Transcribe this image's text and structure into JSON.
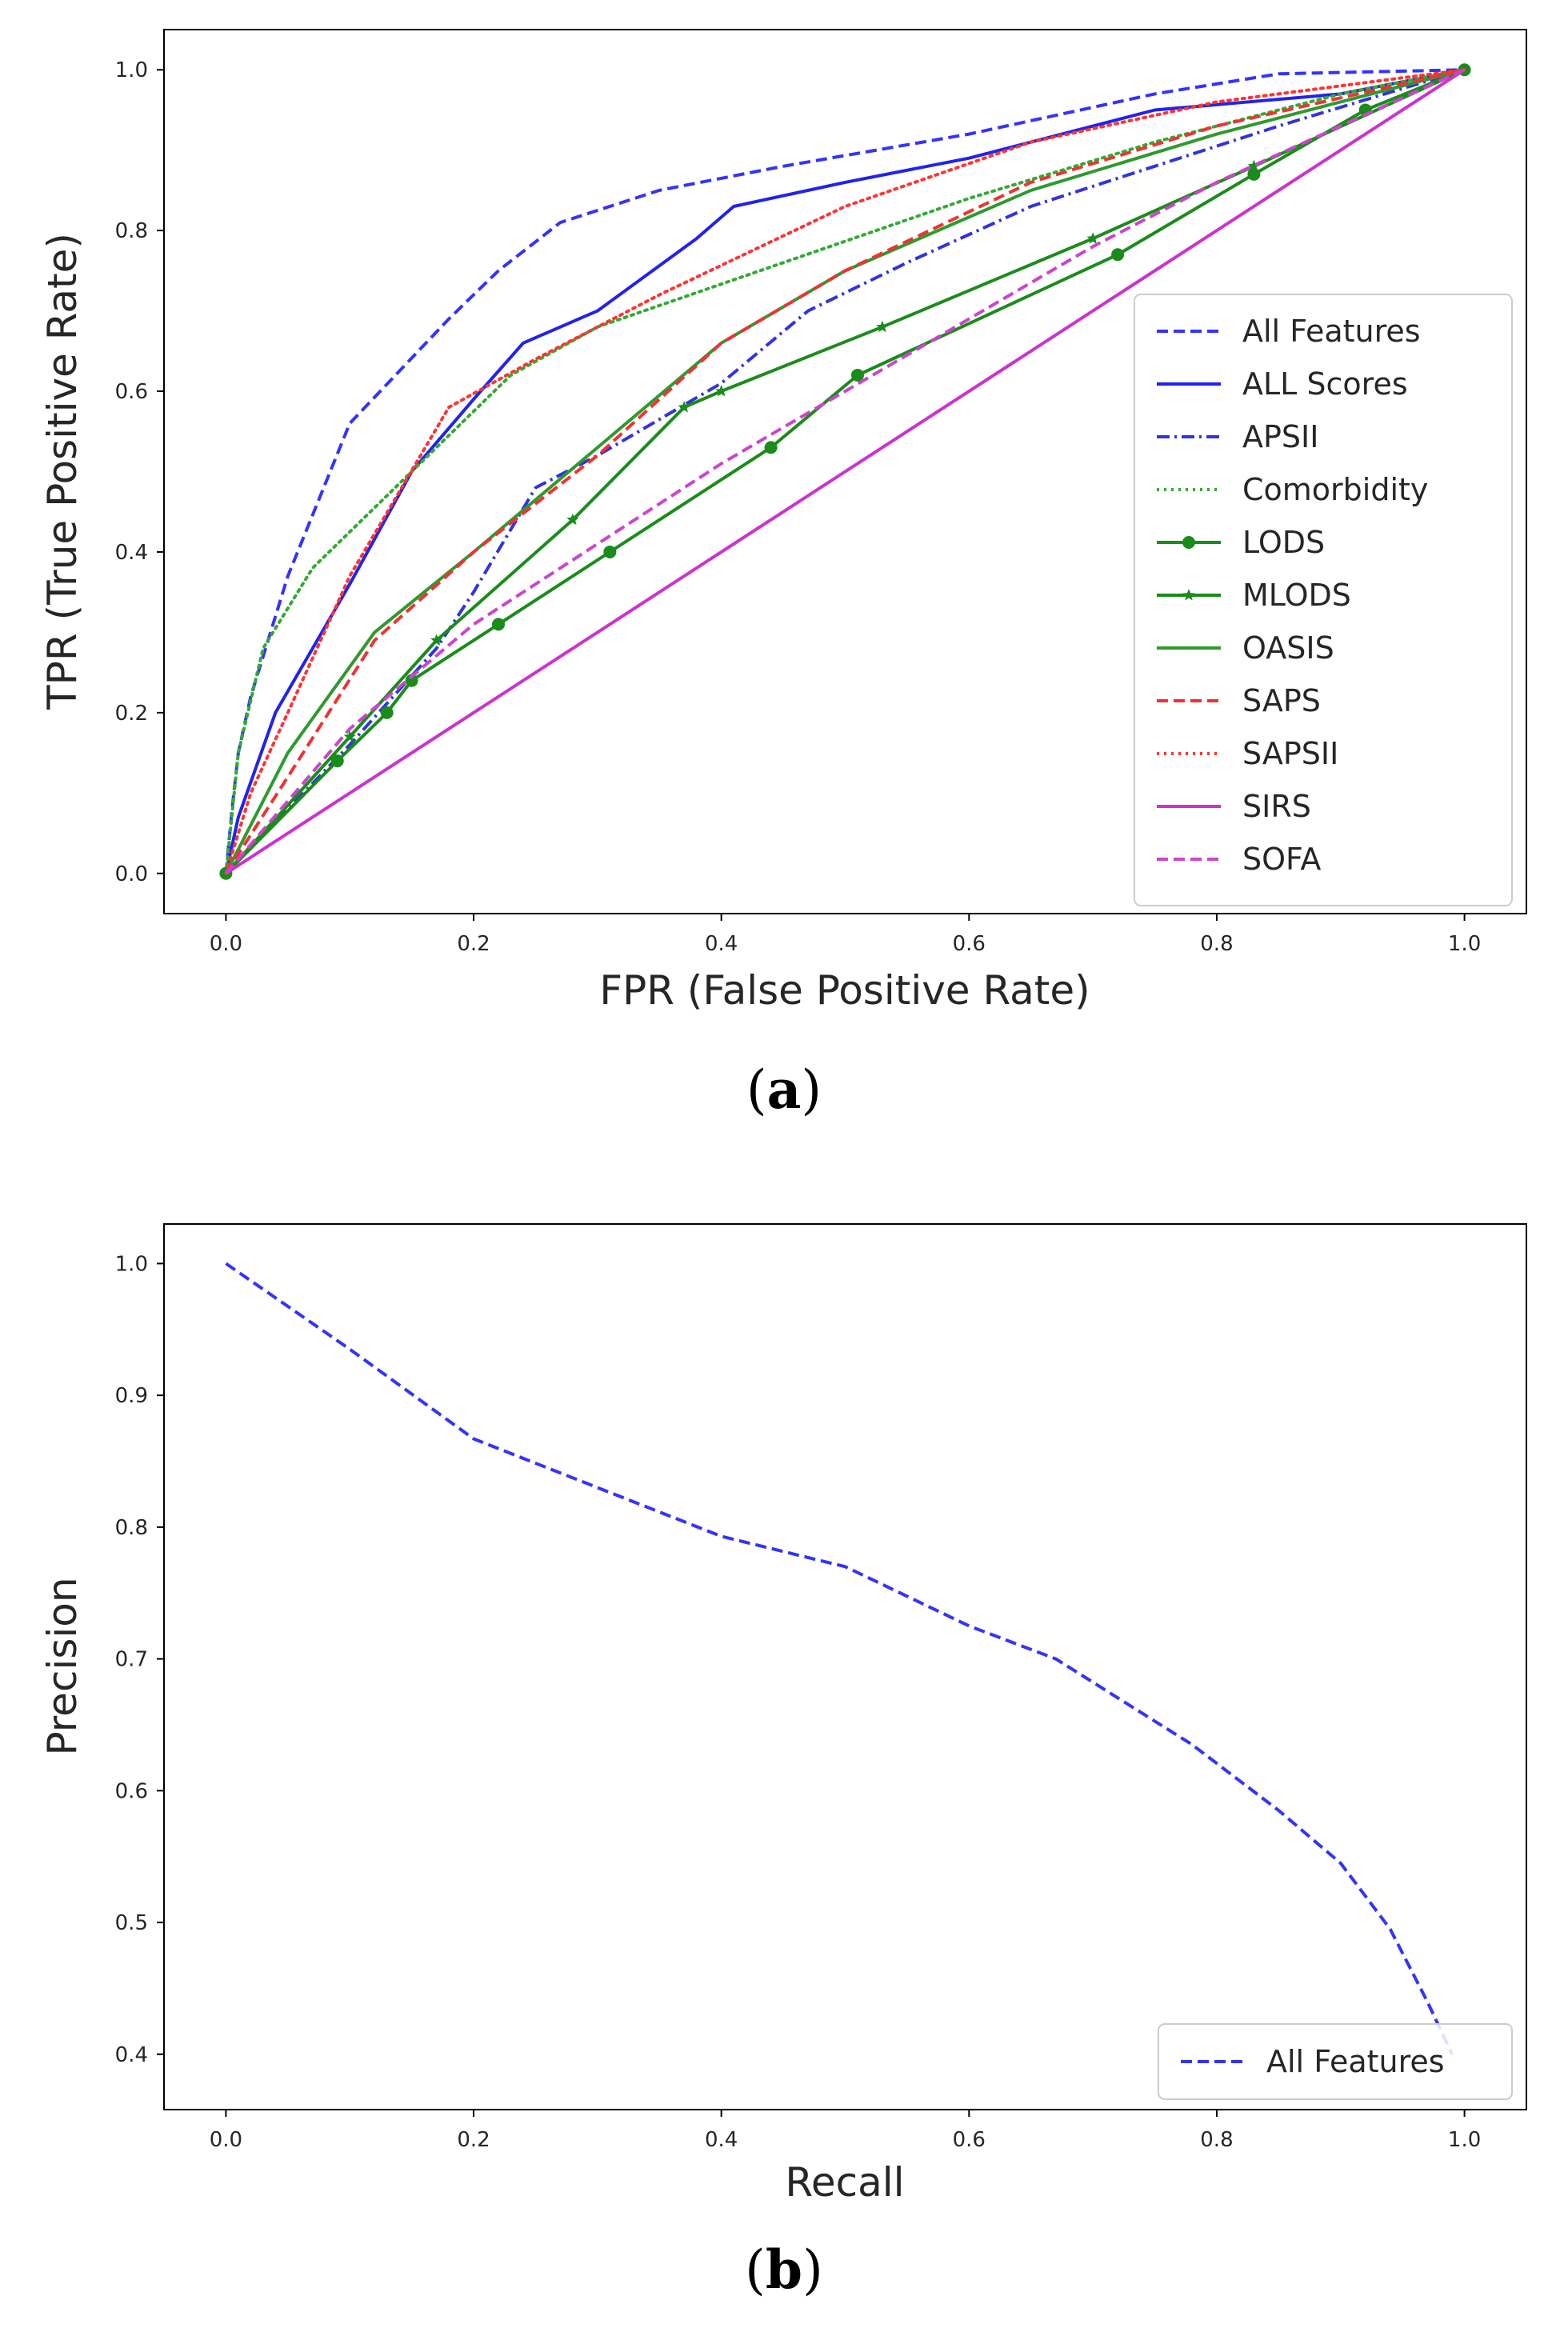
{
  "chart_data": [
    {
      "type": "line",
      "panel_label": "a",
      "xlabel": "FPR (False Positive Rate)",
      "ylabel": "TPR (True Positive Rate)",
      "xlim": [
        -0.05,
        1.05
      ],
      "ylim": [
        -0.05,
        1.05
      ],
      "xticks": [
        "0.0",
        "0.2",
        "0.4",
        "0.6",
        "0.8",
        "1.0"
      ],
      "yticks": [
        "0.0",
        "0.2",
        "0.4",
        "0.6",
        "0.8",
        "1.0"
      ],
      "legend_position": "lower-right",
      "series": [
        {
          "name": "All Features",
          "color": "#3333ff",
          "style": "dashed",
          "marker": "none",
          "x": [
            0,
            0.005,
            0.01,
            0.02,
            0.05,
            0.1,
            0.18,
            0.22,
            0.27,
            0.35,
            0.45,
            0.6,
            0.75,
            0.85,
            1.0
          ],
          "y": [
            0,
            0.08,
            0.15,
            0.22,
            0.37,
            0.56,
            0.69,
            0.75,
            0.81,
            0.85,
            0.88,
            0.92,
            0.97,
            0.995,
            1.0
          ]
        },
        {
          "name": "ALL Scores",
          "color": "#2222ee",
          "style": "solid",
          "marker": "none",
          "x": [
            0,
            0.01,
            0.04,
            0.1,
            0.15,
            0.2,
            0.24,
            0.3,
            0.38,
            0.41,
            0.5,
            0.6,
            0.75,
            0.9,
            1.0
          ],
          "y": [
            0,
            0.07,
            0.2,
            0.36,
            0.5,
            0.59,
            0.66,
            0.7,
            0.79,
            0.83,
            0.86,
            0.89,
            0.95,
            0.97,
            1.0
          ]
        },
        {
          "name": "APSII",
          "color": "#3333dd",
          "style": "dashdot",
          "marker": "none",
          "x": [
            0,
            0.05,
            0.1,
            0.17,
            0.2,
            0.25,
            0.3,
            0.4,
            0.47,
            0.55,
            0.65,
            0.75,
            0.85,
            1.0
          ],
          "y": [
            0,
            0.08,
            0.16,
            0.28,
            0.35,
            0.48,
            0.52,
            0.61,
            0.7,
            0.76,
            0.83,
            0.88,
            0.93,
            1.0
          ]
        },
        {
          "name": "Comorbidity",
          "color": "#33aa33",
          "style": "dotted",
          "marker": "none",
          "x": [
            0,
            0.01,
            0.03,
            0.07,
            0.15,
            0.23,
            0.3,
            0.45,
            0.6,
            0.75,
            0.9,
            1.0
          ],
          "y": [
            0,
            0.15,
            0.28,
            0.38,
            0.5,
            0.62,
            0.68,
            0.76,
            0.84,
            0.91,
            0.97,
            1.0
          ]
        },
        {
          "name": "LODS",
          "color": "#1a8c1a",
          "style": "solid",
          "marker": "circle",
          "x": [
            0,
            0.09,
            0.13,
            0.15,
            0.22,
            0.31,
            0.44,
            0.51,
            0.72,
            0.83,
            0.92,
            1.0
          ],
          "y": [
            0,
            0.14,
            0.2,
            0.24,
            0.31,
            0.4,
            0.53,
            0.62,
            0.77,
            0.87,
            0.95,
            1.0
          ]
        },
        {
          "name": "MLODS",
          "color": "#1a8c1a",
          "style": "solid",
          "marker": "star",
          "x": [
            0,
            0.1,
            0.17,
            0.28,
            0.37,
            0.4,
            0.53,
            0.7,
            0.83,
            1.0
          ],
          "y": [
            0,
            0.17,
            0.29,
            0.44,
            0.58,
            0.6,
            0.68,
            0.79,
            0.88,
            1.0
          ]
        },
        {
          "name": "OASIS",
          "color": "#2e9a2e",
          "style": "solid",
          "marker": "none",
          "x": [
            0,
            0.05,
            0.12,
            0.2,
            0.3,
            0.4,
            0.5,
            0.65,
            0.8,
            1.0
          ],
          "y": [
            0,
            0.15,
            0.3,
            0.4,
            0.53,
            0.66,
            0.75,
            0.85,
            0.92,
            1.0
          ]
        },
        {
          "name": "SAPS",
          "color": "#ee3333",
          "style": "dashed",
          "marker": "none",
          "x": [
            0,
            0.05,
            0.12,
            0.2,
            0.3,
            0.4,
            0.5,
            0.65,
            0.8,
            1.0
          ],
          "y": [
            0,
            0.12,
            0.29,
            0.4,
            0.52,
            0.66,
            0.75,
            0.86,
            0.93,
            1.0
          ]
        },
        {
          "name": "SAPSII",
          "color": "#ff3333",
          "style": "dotted",
          "marker": "none",
          "x": [
            0,
            0.02,
            0.05,
            0.1,
            0.18,
            0.25,
            0.35,
            0.5,
            0.65,
            0.8,
            1.0
          ],
          "y": [
            0,
            0.1,
            0.2,
            0.37,
            0.58,
            0.64,
            0.72,
            0.83,
            0.91,
            0.96,
            1.0
          ]
        },
        {
          "name": "SIRS",
          "color": "#cc33cc",
          "style": "solid",
          "marker": "none",
          "x": [
            0,
            1.0
          ],
          "y": [
            0,
            1.0
          ]
        },
        {
          "name": "SOFA",
          "color": "#cc44cc",
          "style": "dashed",
          "marker": "none",
          "x": [
            0,
            0.1,
            0.2,
            0.3,
            0.4,
            0.5,
            0.6,
            0.7,
            0.8,
            0.9,
            1.0
          ],
          "y": [
            0,
            0.18,
            0.31,
            0.41,
            0.51,
            0.6,
            0.69,
            0.78,
            0.86,
            0.93,
            1.0
          ]
        }
      ]
    },
    {
      "type": "line",
      "panel_label": "b",
      "xlabel": "Recall",
      "ylabel": "Precision",
      "xlim": [
        -0.05,
        1.05
      ],
      "ylim": [
        0.358,
        1.03
      ],
      "xticks": [
        "0.0",
        "0.2",
        "0.4",
        "0.6",
        "0.8",
        "1.0"
      ],
      "yticks": [
        "0.4",
        "0.5",
        "0.6",
        "0.7",
        "0.8",
        "0.9",
        "1.0"
      ],
      "legend_position": "lower-right",
      "series": [
        {
          "name": "All Features",
          "color": "#3333ff",
          "style": "dashed",
          "marker": "none",
          "x": [
            0.0,
            0.1,
            0.2,
            0.3,
            0.4,
            0.5,
            0.6,
            0.67,
            0.78,
            0.85,
            0.9,
            0.94,
            0.97,
            0.99
          ],
          "y": [
            1.0,
            0.935,
            0.867,
            0.83,
            0.793,
            0.77,
            0.725,
            0.7,
            0.635,
            0.585,
            0.545,
            0.495,
            0.44,
            0.4
          ]
        }
      ]
    }
  ]
}
